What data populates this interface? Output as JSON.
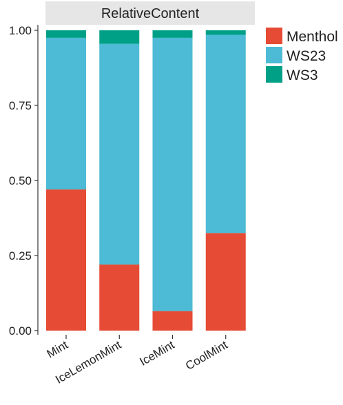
{
  "chart_data": {
    "type": "bar",
    "stacked": true,
    "facet_title": "RelativeContent",
    "categories": [
      "Mint",
      "IceLemonMint",
      "IceMint",
      "CoolMint"
    ],
    "series": [
      {
        "name": "Menthol",
        "color": "#E64B35",
        "values": [
          0.47,
          0.22,
          0.065,
          0.325
        ]
      },
      {
        "name": "WS23",
        "color": "#4DBBD5",
        "values": [
          0.505,
          0.735,
          0.91,
          0.66
        ]
      },
      {
        "name": "WS3",
        "color": "#00A087",
        "values": [
          0.025,
          0.045,
          0.025,
          0.015
        ]
      }
    ],
    "ylim": [
      0,
      1
    ],
    "yticks": [
      "0.00",
      "0.25",
      "0.50",
      "0.75",
      "1.00"
    ],
    "xlabel": "",
    "ylabel": "",
    "grid": false,
    "legend_position": "right"
  }
}
